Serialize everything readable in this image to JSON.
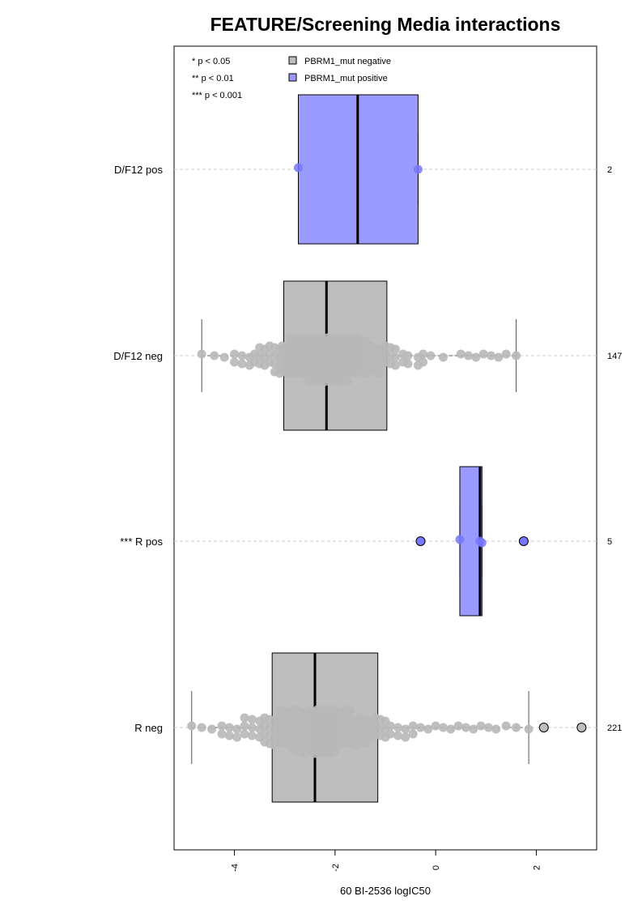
{
  "chart_data": {
    "type": "box",
    "title": "FEATURE/Screening Media interactions",
    "xlabel": "60 BI-2536 logIC50",
    "ylabel": "",
    "xlim": [
      -5.2,
      3.2
    ],
    "xticks": [
      -4,
      -2,
      0,
      2
    ],
    "orientation": "horizontal",
    "grid": "dashed reference line per group",
    "legend": {
      "position": "top-left",
      "significance": [
        "* p < 0.05",
        "** p < 0.01",
        "*** p < 0.001"
      ],
      "entries": [
        {
          "label": "PBRM1_mut negative",
          "color": "#bebebe"
        },
        {
          "label": "PBRM1_mut positive",
          "color": "#9b9bff"
        }
      ]
    },
    "groups": [
      {
        "label": "D/F12 pos",
        "n": "2",
        "status": "positive",
        "box": {
          "whisker_low": -2.73,
          "q1": -2.73,
          "median": -1.55,
          "q3": -0.35,
          "whisker_high": -0.35
        },
        "points": [
          -2.73,
          -0.35
        ],
        "outliers": []
      },
      {
        "label": "D/F12 neg",
        "n": "147",
        "status": "negative",
        "box": {
          "whisker_low": -4.65,
          "q1": -3.02,
          "median": -2.17,
          "q3": -0.97,
          "whisker_high": 1.6
        },
        "points": [
          -4.65,
          -4.4,
          -4.2,
          -4.0,
          -3.85,
          -3.7,
          -3.6,
          -3.5,
          -3.4,
          -3.3,
          -3.2,
          -3.1,
          -3.05,
          -3.0,
          -2.95,
          -2.9,
          -2.85,
          -2.8,
          -2.75,
          -2.7,
          -2.65,
          -2.6,
          -2.55,
          -2.5,
          -2.45,
          -2.4,
          -2.35,
          -2.3,
          -2.25,
          -2.2,
          -2.15,
          -2.1,
          -2.05,
          -2.0,
          -1.95,
          -1.9,
          -1.85,
          -1.8,
          -1.75,
          -1.7,
          -1.65,
          -1.6,
          -1.55,
          -1.5,
          -1.4,
          -1.3,
          -1.2,
          -1.1,
          -1.0,
          -0.9,
          -0.8,
          -0.65,
          -0.55,
          -0.35,
          -0.25,
          -0.1,
          0.15,
          0.5,
          0.65,
          0.8,
          0.95,
          1.1,
          1.25,
          1.4,
          1.6
        ],
        "outliers": []
      },
      {
        "label": "*** R pos",
        "n": "5",
        "status": "positive",
        "box": {
          "whisker_low": 0.48,
          "q1": 0.48,
          "median": 0.88,
          "q3": 0.92,
          "whisker_high": 0.92
        },
        "points": [
          0.48,
          0.88,
          0.92
        ],
        "outliers": [
          -0.3,
          1.75
        ]
      },
      {
        "label": "R neg",
        "n": "221",
        "status": "negative",
        "box": {
          "whisker_low": -4.85,
          "q1": -3.25,
          "median": -2.4,
          "q3": -1.15,
          "whisker_high": 1.85
        },
        "points": [
          -4.85,
          -4.65,
          -4.45,
          -4.25,
          -4.1,
          -3.95,
          -3.8,
          -3.65,
          -3.5,
          -3.4,
          -3.3,
          -3.2,
          -3.1,
          -3.0,
          -2.9,
          -2.8,
          -2.7,
          -2.6,
          -2.5,
          -2.45,
          -2.4,
          -2.35,
          -2.3,
          -2.25,
          -2.2,
          -2.15,
          -2.1,
          -2.05,
          -2.0,
          -1.9,
          -1.8,
          -1.7,
          -1.6,
          -1.5,
          -1.4,
          -1.3,
          -1.2,
          -1.1,
          -1.0,
          -0.9,
          -0.75,
          -0.6,
          -0.45,
          -0.3,
          -0.15,
          0.0,
          0.15,
          0.3,
          0.45,
          0.6,
          0.75,
          0.9,
          1.05,
          1.2,
          1.4,
          1.6,
          1.85
        ],
        "outliers": [
          2.15,
          2.9
        ]
      }
    ]
  }
}
